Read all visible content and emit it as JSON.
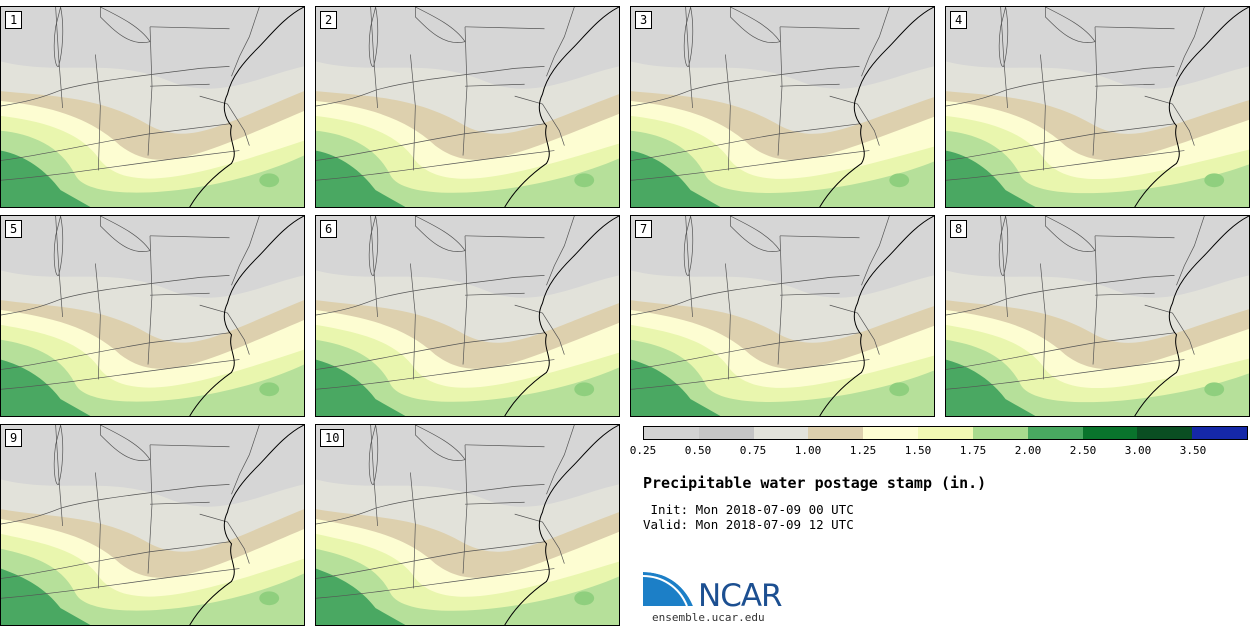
{
  "figure": {
    "title": "Precipitable water postage stamp (in.)",
    "init": " Init: Mon 2018-07-09 00 UTC",
    "valid": "Valid: Mon 2018-07-09 12 UTC",
    "site": "ensemble.ucar.edu",
    "logo_text": "NCAR",
    "logo_name": "ncar-logo"
  },
  "members": [
    "1",
    "2",
    "3",
    "4",
    "5",
    "6",
    "7",
    "8",
    "9",
    "10"
  ],
  "colorbar": {
    "ticks": [
      "0.25",
      "0.50",
      "0.75",
      "1.00",
      "1.25",
      "1.50",
      "1.75",
      "2.00",
      "2.50",
      "3.00",
      "3.50"
    ],
    "colors": [
      "#d2d2d2",
      "#c5c5c5",
      "#e3e3db",
      "#ddd0ae",
      "#fdfdd2",
      "#f1f9b4",
      "#a8db8e",
      "#49a860",
      "#09742c",
      "#0a4e22",
      "#1528a8"
    ]
  }
}
